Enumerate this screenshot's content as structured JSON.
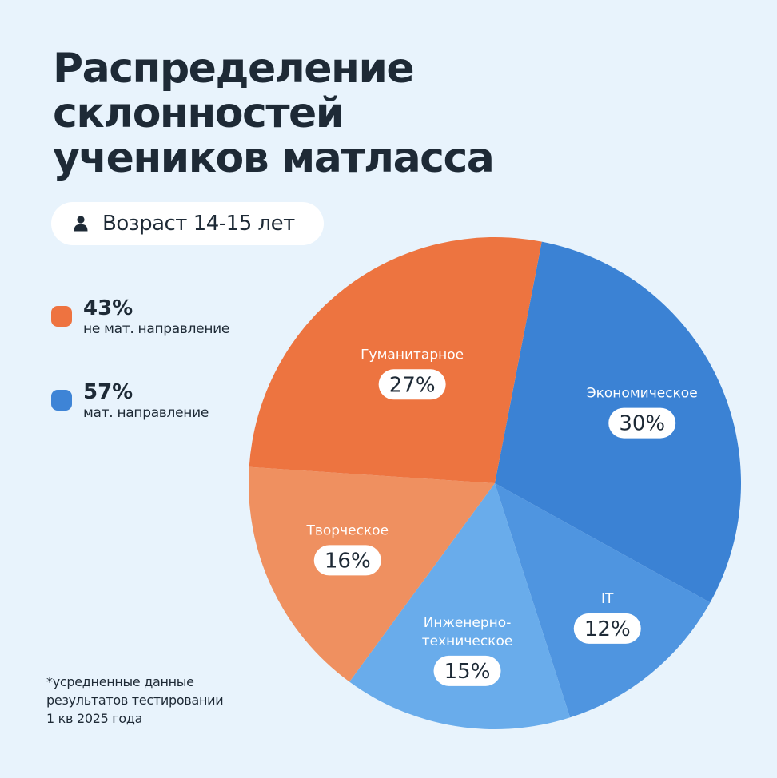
{
  "title_lines": [
    "Распределение",
    "склонностей",
    "учеников матласса"
  ],
  "age_badge": "Возраст 14-15 лет",
  "legend": [
    {
      "value": "43%",
      "label": "не мат. направление",
      "color": "#EE7340"
    },
    {
      "value": "57%",
      "label": "мат. направление",
      "color": "#3E84D6"
    }
  ],
  "footnote_lines": [
    "*усредненные данные",
    "результатов тестировании",
    "1 кв 2025 года"
  ],
  "chart_data": {
    "type": "pie",
    "unit": "%",
    "slices": [
      {
        "label": "Экономическое",
        "value": 30,
        "color": "#3B82D4"
      },
      {
        "label": "IT",
        "value": 12,
        "color": "#4F95E0"
      },
      {
        "label": "Инженерно-\nтехническое",
        "value": 15,
        "color": "#69ACEB"
      },
      {
        "label": "Творческое",
        "value": 16,
        "color": "#EF9060"
      },
      {
        "label": "Гуманитарное",
        "value": 27,
        "color": "#ED7440"
      }
    ]
  }
}
